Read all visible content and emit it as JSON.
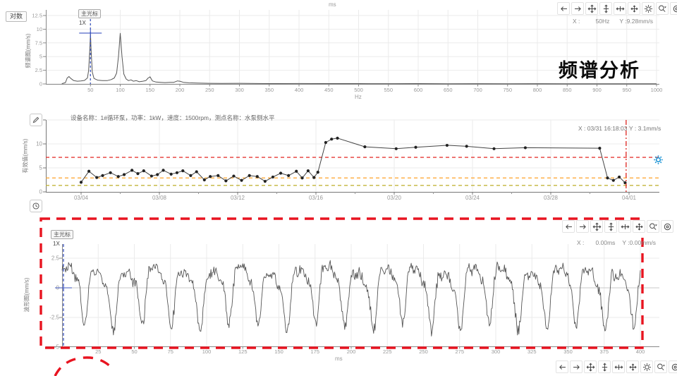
{
  "remnant_unit": "ms",
  "panels": {
    "spectrum": {
      "log_button": "对数",
      "ylabel": "频谱图(mm/s)",
      "xunit": "Hz",
      "cursor_label": "主光标",
      "cursor_sub": "1X",
      "readout_x_label": "X :",
      "readout_x_value": "50Hz",
      "readout_y": "Y :9.28mm/s",
      "overlay_title": "频谱分析"
    },
    "trend": {
      "title": "设备名称：1#循环泵，功率：1kW，速度：1500rpm，测点名称：水泵侧水平",
      "ylabel": "有效值(mm/s)",
      "readout_x": "X : 03/31 16:18:03",
      "readout_y": "Y : 3.1mm/s"
    },
    "waveform": {
      "ylabel": "波形图(mm/s)",
      "xunit": "ms",
      "cursor_label": "主光标",
      "cursor_sub": "1X",
      "readout_x_label": "X :",
      "readout_x_value": "0.00ms",
      "readout_y": "Y :0.00mm/s"
    }
  },
  "toolbars": {
    "spectrum": {
      "icons": [
        "arrow-left",
        "arrow-right",
        "pan",
        "fit-vertical",
        "fit-horizontal",
        "fit-all",
        "gear",
        "zoom-select",
        "reset"
      ]
    },
    "waveform": {
      "icons": [
        "arrow-left",
        "arrow-right",
        "pan",
        "fit-vertical",
        "fit-horizontal",
        "fit-all",
        "zoom-select",
        "reset"
      ]
    },
    "bottom": {
      "icons": [
        "arrow-left",
        "arrow-right",
        "pan",
        "fit-vertical",
        "fit-horizontal",
        "fit-all",
        "gear",
        "zoom-select",
        "reset"
      ]
    }
  },
  "colors": {
    "curve": "#555555",
    "grid": "#ebebeb",
    "axis": "#888888",
    "tick_text": "#999999",
    "blue_cursor": "#3c55c0",
    "red_cursor": "#e0332e",
    "alarm_red": "#e53935",
    "alarm_orange": "#ffa228",
    "alarm_yellow": "#c2b53b",
    "highlight_red": "#e81420",
    "gear_blue": "#1a93d5"
  },
  "chart_data": [
    {
      "id": "spectrum",
      "type": "line",
      "title": "频谱分析",
      "xlabel": "Hz",
      "ylabel": "频谱图(mm/s)",
      "xlim": [
        0,
        1000
      ],
      "ylim": [
        0,
        12.5
      ],
      "xticks": [
        50,
        100,
        150,
        200,
        250,
        300,
        350,
        400,
        450,
        500,
        550,
        600,
        650,
        700,
        750,
        800,
        850,
        900,
        950,
        1000
      ],
      "yticks": [
        0,
        2.5,
        5,
        7.5,
        10,
        12.5
      ],
      "grid": true,
      "cursor": {
        "x_hz": 50,
        "y_value": 9.28,
        "label": "主光标",
        "order": "1X"
      },
      "points": [
        [
          2,
          0.05
        ],
        [
          8,
          0.25
        ],
        [
          11,
          1.1
        ],
        [
          14,
          1.35
        ],
        [
          17,
          1.0
        ],
        [
          22,
          0.6
        ],
        [
          28,
          0.5
        ],
        [
          34,
          0.55
        ],
        [
          40,
          0.65
        ],
        [
          45,
          1.1
        ],
        [
          47,
          2.5
        ],
        [
          49,
          6.5
        ],
        [
          50,
          9.3
        ],
        [
          51,
          6.5
        ],
        [
          53,
          2.2
        ],
        [
          56,
          1.0
        ],
        [
          62,
          0.7
        ],
        [
          70,
          0.6
        ],
        [
          78,
          0.6
        ],
        [
          85,
          0.8
        ],
        [
          90,
          1.1
        ],
        [
          94,
          2.0
        ],
        [
          97,
          5.0
        ],
        [
          100,
          9.25
        ],
        [
          103,
          5.0
        ],
        [
          106,
          1.8
        ],
        [
          110,
          0.9
        ],
        [
          114,
          0.6
        ],
        [
          118,
          0.75
        ],
        [
          122,
          0.5
        ],
        [
          127,
          0.6
        ],
        [
          132,
          0.4
        ],
        [
          138,
          0.5
        ],
        [
          143,
          0.6
        ],
        [
          147,
          1.1
        ],
        [
          150,
          1.3
        ],
        [
          154,
          0.55
        ],
        [
          160,
          0.35
        ],
        [
          168,
          0.3
        ],
        [
          175,
          0.25
        ],
        [
          183,
          0.28
        ],
        [
          190,
          0.3
        ],
        [
          196,
          0.55
        ],
        [
          200,
          0.5
        ],
        [
          206,
          0.3
        ],
        [
          215,
          0.2
        ],
        [
          230,
          0.15
        ],
        [
          250,
          0.12
        ],
        [
          270,
          0.1
        ],
        [
          300,
          0.12
        ],
        [
          330,
          0.08
        ],
        [
          360,
          0.07
        ],
        [
          400,
          0.08
        ],
        [
          440,
          0.06
        ],
        [
          480,
          0.07
        ],
        [
          520,
          0.05
        ],
        [
          560,
          0.05
        ],
        [
          600,
          0.06
        ],
        [
          650,
          0.04
        ],
        [
          700,
          0.05
        ],
        [
          750,
          0.04
        ],
        [
          800,
          0.05
        ],
        [
          850,
          0.03
        ],
        [
          900,
          0.04
        ],
        [
          950,
          0.03
        ],
        [
          1000,
          0.03
        ]
      ]
    },
    {
      "id": "trend",
      "type": "line",
      "title": "设备名称：1#循环泵，功率：1kW，速度：1500rpm，测点名称：水泵侧水平",
      "ylabel": "有效值(mm/s)",
      "ylim": [
        0,
        15
      ],
      "yticks": [
        0,
        5,
        10,
        15
      ],
      "xtick_labels": [
        "03/04",
        "03/08",
        "03/12",
        "03/16",
        "03/20",
        "03/24",
        "03/28",
        "04/01"
      ],
      "xtick_day_step": 4,
      "grid": true,
      "thresholds": [
        {
          "value": 7.2,
          "color": "#e53935"
        },
        {
          "value": 2.9,
          "color": "#ffa228"
        },
        {
          "value": 1.35,
          "color": "#c2b53b"
        }
      ],
      "cursor": {
        "day": 27.85,
        "x_text": "03/31 16:18:03",
        "y_value": 3.1
      },
      "points": [
        [
          0,
          2.0
        ],
        [
          0.4,
          4.3
        ],
        [
          0.8,
          3.0
        ],
        [
          1.1,
          3.4
        ],
        [
          1.5,
          4.0
        ],
        [
          1.9,
          3.2
        ],
        [
          2.2,
          3.6
        ],
        [
          2.6,
          4.5
        ],
        [
          2.9,
          3.8
        ],
        [
          3.2,
          4.4
        ],
        [
          3.6,
          3.3
        ],
        [
          3.9,
          3.6
        ],
        [
          4.2,
          4.5
        ],
        [
          4.6,
          3.7
        ],
        [
          4.9,
          4.0
        ],
        [
          5.2,
          4.4
        ],
        [
          5.6,
          3.4
        ],
        [
          5.9,
          4.2
        ],
        [
          6.3,
          2.5
        ],
        [
          6.6,
          3.2
        ],
        [
          7.0,
          3.4
        ],
        [
          7.4,
          2.3
        ],
        [
          7.8,
          3.3
        ],
        [
          8.2,
          2.4
        ],
        [
          8.6,
          3.4
        ],
        [
          9.0,
          3.2
        ],
        [
          9.4,
          2.2
        ],
        [
          9.8,
          3.1
        ],
        [
          10.2,
          3.9
        ],
        [
          10.6,
          3.4
        ],
        [
          11.0,
          4.3
        ],
        [
          11.3,
          2.9
        ],
        [
          11.6,
          4.4
        ],
        [
          11.9,
          3.0
        ],
        [
          12.1,
          4.1
        ],
        [
          12.5,
          10.3
        ],
        [
          12.8,
          11.0
        ],
        [
          13.1,
          11.2
        ],
        [
          14.5,
          9.4
        ],
        [
          16.1,
          9.0
        ],
        [
          17.1,
          9.3
        ],
        [
          18.7,
          9.7
        ],
        [
          19.7,
          9.5
        ],
        [
          21.1,
          9.0
        ],
        [
          22.7,
          9.2
        ],
        [
          26.5,
          9.1
        ],
        [
          26.9,
          2.9
        ],
        [
          27.2,
          2.4
        ],
        [
          27.5,
          3.1
        ],
        [
          27.8,
          1.9
        ]
      ]
    },
    {
      "id": "waveform",
      "type": "line",
      "ylabel": "波形图(mm/s)",
      "xlabel": "ms",
      "xlim": [
        0,
        400
      ],
      "ylim": [
        -5,
        3.6
      ],
      "yticks": [
        2.5,
        0,
        -2.5,
        -5
      ],
      "xticks": [
        25,
        50,
        75,
        100,
        125,
        150,
        175,
        200,
        225,
        250,
        275,
        300,
        325,
        350,
        375,
        400
      ],
      "grid": true,
      "cursor": {
        "x_ms": 0,
        "y_value": 0,
        "label": "主光标",
        "order": "1X"
      },
      "synthesis": {
        "duration_ms": 400,
        "step_ms": 0.5,
        "seed": 13,
        "noise_amp": 0.6,
        "components": [
          {
            "period_ms": 20,
            "amp": 2.05,
            "phase": 0
          },
          {
            "period_ms": 10,
            "amp": 0.9,
            "phase": 1.2
          },
          {
            "period_ms": 6.67,
            "amp": 0.5,
            "phase": 2.4
          },
          {
            "period_ms": 57,
            "amp": 0.35,
            "phase": 0.7
          }
        ]
      }
    }
  ]
}
